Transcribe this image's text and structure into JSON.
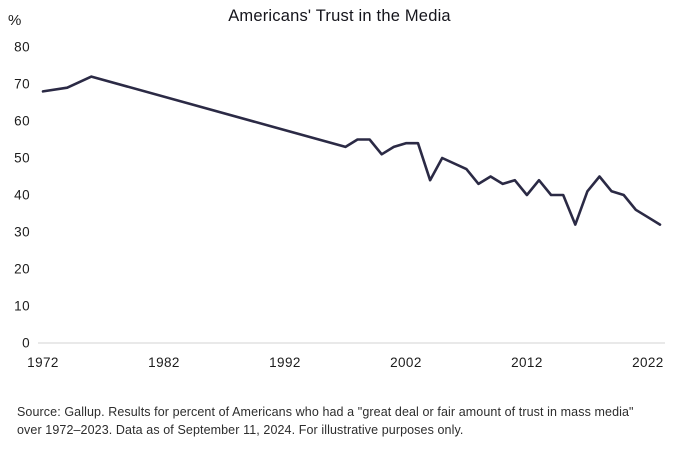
{
  "chart": {
    "title": "Americans' Trust in the Media"
  },
  "chart_data": {
    "type": "line",
    "title": "Americans' Trust in the Media",
    "series_name": "Percent of Americans with a great deal or fair amount of trust in mass media",
    "x": [
      1972,
      1974,
      1976,
      1997,
      1998,
      1999,
      2000,
      2001,
      2002,
      2003,
      2004,
      2005,
      2007,
      2008,
      2009,
      2010,
      2011,
      2012,
      2013,
      2014,
      2015,
      2016,
      2017,
      2018,
      2019,
      2020,
      2021,
      2022,
      2023
    ],
    "values": [
      68,
      69,
      72,
      53,
      55,
      55,
      51,
      53,
      54,
      54,
      44,
      50,
      47,
      43,
      45,
      43,
      44,
      40,
      44,
      40,
      40,
      32,
      41,
      45,
      41,
      40,
      36,
      34,
      32
    ],
    "xlabel": "",
    "ylabel": "%",
    "xlim": [
      1972,
      2023
    ],
    "ylim": [
      0,
      80
    ],
    "yticks": [
      0,
      10,
      20,
      30,
      40,
      50,
      60,
      70,
      80
    ],
    "xticks": [
      1972,
      1982,
      1992,
      2002,
      2012,
      2022
    ],
    "grid": false,
    "legend": false,
    "line_color": "#2b2a45",
    "baseline_color": "#e9e9e9",
    "tick_color": "#1c1c1c"
  },
  "footer": {
    "source_note": "Source: Gallup. Results for percent of Americans who had a \"great deal or fair amount of trust in mass media\" over 1972–2023. Data as of September 11, 2024. For illustrative purposes only."
  }
}
